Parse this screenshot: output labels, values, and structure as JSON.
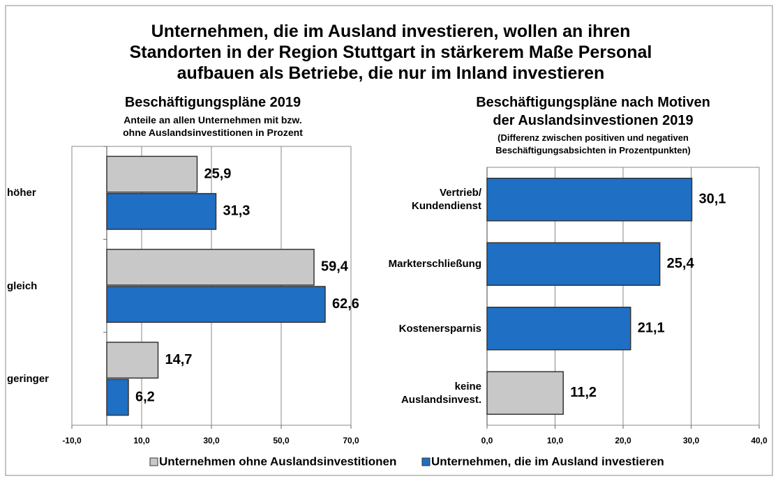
{
  "title": "Unternehmen, die im Ausland investieren, wollen an ihren\nStandorten in der Region Stuttgart in stärkerem Maße Personal\naufbauen als Betriebe, die nur im Inland investieren",
  "chart_data": [
    {
      "type": "bar",
      "orientation": "horizontal",
      "title": "Beschäftigungspläne 2019",
      "subtitle": "Anteile an allen Unternehmen mit bzw.\nohne Auslandsinvestitionen in Prozent",
      "categories": [
        "höher",
        "gleich",
        "geringer"
      ],
      "series": [
        {
          "name": "Unternehmen ohne Auslandsinvestitionen",
          "color": "#c8c8c8",
          "values": [
            25.9,
            59.4,
            14.7
          ],
          "value_labels": [
            "25,9",
            "59,4",
            "14,7"
          ]
        },
        {
          "name": "Unternehmen, die im Ausland investieren",
          "color": "#1f6fc5",
          "values": [
            31.3,
            62.6,
            6.2
          ],
          "value_labels": [
            "31,3",
            "62,6",
            "6,2"
          ]
        }
      ],
      "xlim": [
        -10,
        70
      ],
      "xticks": [
        {
          "value": -10,
          "label": "-10,0"
        },
        {
          "value": 10,
          "label": "10,0"
        },
        {
          "value": 30,
          "label": "30,0"
        },
        {
          "value": 50,
          "label": "50,0"
        },
        {
          "value": 70,
          "label": "70,0"
        }
      ],
      "grid": true,
      "legend": "bottom"
    },
    {
      "type": "bar",
      "orientation": "horizontal",
      "title": "Beschäftigungspläne nach Motiven\nder Auslandsinvestionen 2019",
      "subtitle": "(Differenz zwischen positiven und negativen\nBeschäftigungsabsichten in Prozentpunkten)",
      "categories": [
        "Vertrieb/\nKundendienst",
        "Markterschließung",
        "Kostenersparnis",
        "keine\nAuslandsinvest."
      ],
      "values": [
        30.1,
        25.4,
        21.1,
        11.2
      ],
      "value_labels": [
        "30,1",
        "25,4",
        "21,1",
        "11,2"
      ],
      "colors": [
        "#1f6fc5",
        "#1f6fc5",
        "#1f6fc5",
        "#c8c8c8"
      ],
      "xlim": [
        0,
        40
      ],
      "xticks": [
        {
          "value": 0,
          "label": "0,0"
        },
        {
          "value": 10,
          "label": "10,0"
        },
        {
          "value": 20,
          "label": "20,0"
        },
        {
          "value": 30,
          "label": "30,0"
        },
        {
          "value": 40,
          "label": "40,0"
        }
      ],
      "grid": true
    }
  ]
}
